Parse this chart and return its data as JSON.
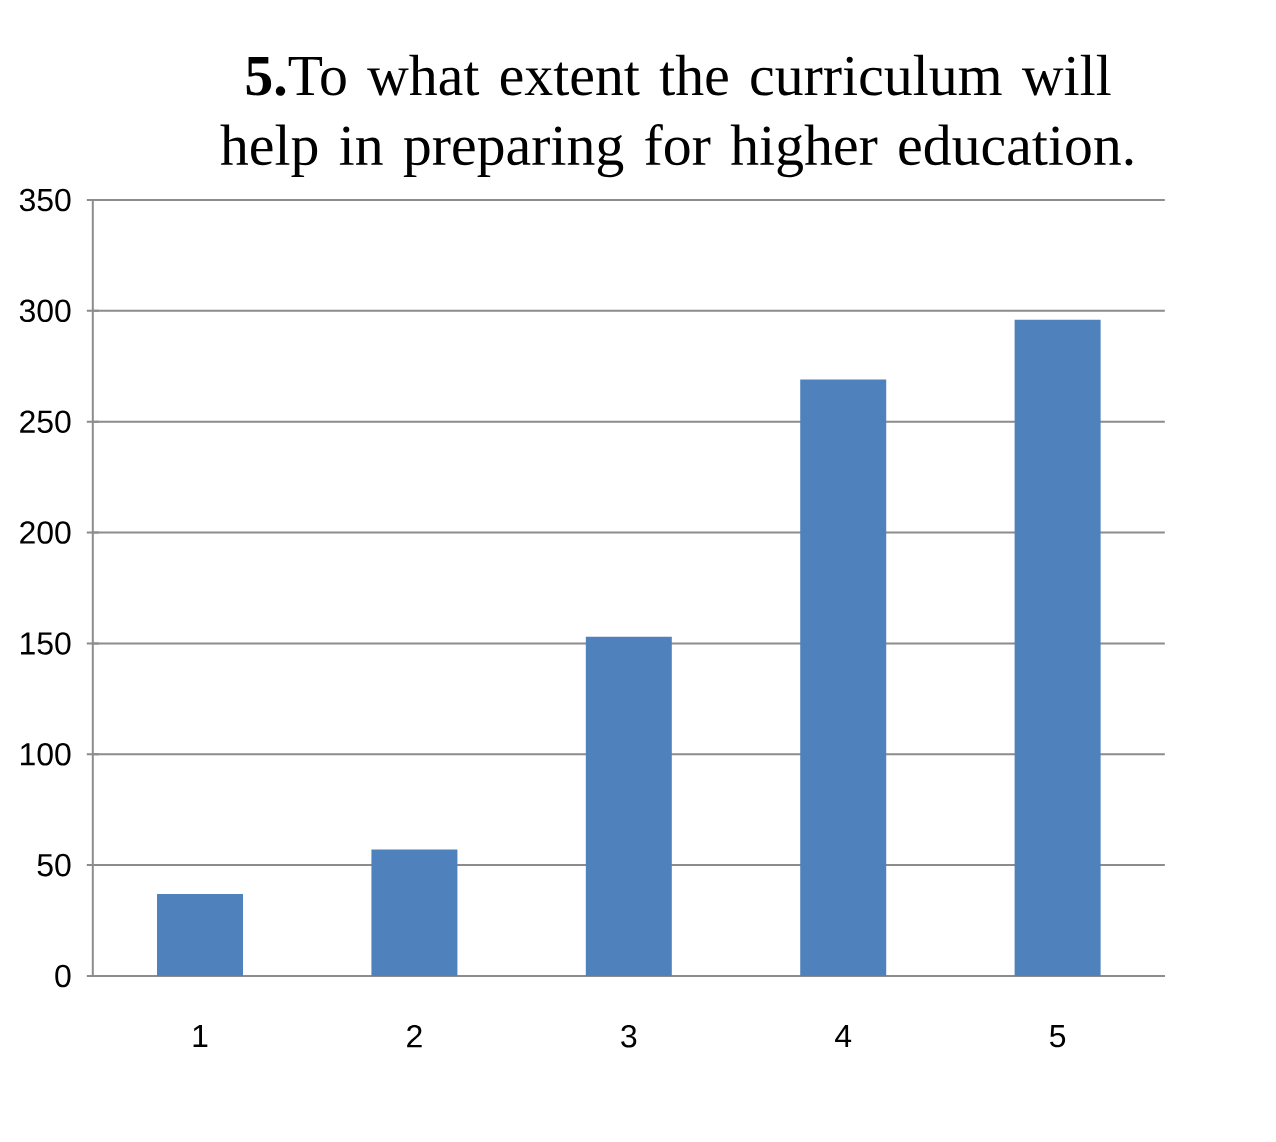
{
  "chart_data": {
    "type": "bar",
    "title": "**5.**To what extent the curriculum will help in preparing for higher education.",
    "categories": [
      "1",
      "2",
      "3",
      "4",
      "5"
    ],
    "values": [
      37,
      57,
      153,
      269,
      296
    ],
    "color": "#4f81bd",
    "ylim": [
      0,
      350
    ],
    "yticks": [
      0,
      50,
      100,
      150,
      200,
      250,
      300,
      350
    ],
    "grid": "y"
  }
}
